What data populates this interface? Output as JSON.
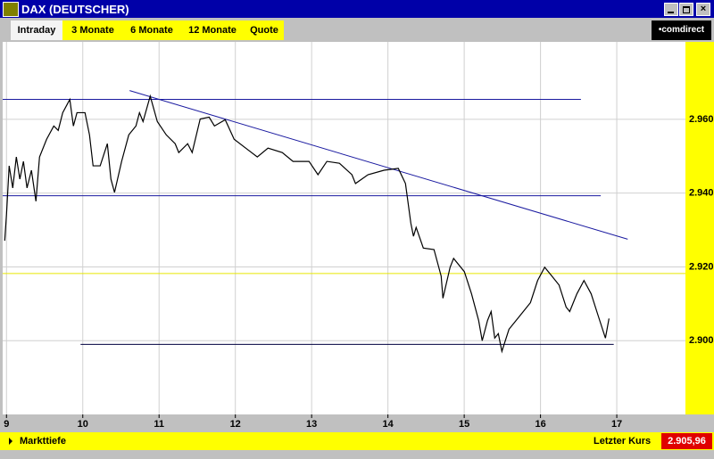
{
  "window": {
    "title": "DAX (DEUTSCHER)"
  },
  "tabs": [
    "Intraday",
    "3 Monate",
    "6 Monate",
    "12 Monate",
    "Quote"
  ],
  "logo": "•comdirect",
  "footer": {
    "depth": "Markttiefe",
    "last_label": "Letzter Kurs",
    "last_price": "2.905,96"
  },
  "chart_data": {
    "type": "line",
    "x": [
      8.977,
      9.0,
      9.035,
      9.082,
      9.129,
      9.175,
      9.222,
      9.269,
      9.327,
      9.386,
      9.433,
      9.526,
      9.62,
      9.678,
      9.737,
      9.83,
      9.877,
      9.924,
      10.029,
      10.088,
      10.135,
      10.228,
      10.322,
      10.369,
      10.416,
      10.509,
      10.603,
      10.697,
      10.743,
      10.79,
      10.884,
      10.977,
      11.094,
      11.211,
      11.258,
      11.375,
      11.434,
      11.539,
      11.656,
      11.726,
      11.867,
      11.984,
      12.136,
      12.288,
      12.428,
      12.615,
      12.756,
      12.966,
      13.083,
      13.2,
      13.364,
      13.528,
      13.575,
      13.739,
      13.949,
      14.136,
      14.23,
      14.3,
      14.335,
      14.37,
      14.464,
      14.604,
      14.698,
      14.721,
      14.815,
      14.861,
      15.002,
      15.096,
      15.189,
      15.236,
      15.306,
      15.353,
      15.4,
      15.447,
      15.494,
      15.587,
      15.728,
      15.868,
      15.962,
      16.055,
      16.149,
      16.243,
      16.336,
      16.383,
      16.477,
      16.57,
      16.664,
      16.757,
      16.851,
      16.898
    ],
    "series": [
      {
        "color": "#000000",
        "values": [
          2927.1,
          2934.2,
          2947.4,
          2941.4,
          2949.8,
          2943.8,
          2948.6,
          2941.4,
          2946.2,
          2937.8,
          2949.8,
          2954.6,
          2958.2,
          2957.0,
          2961.8,
          2965.4,
          2958.2,
          2961.8,
          2961.8,
          2955.8,
          2947.4,
          2947.4,
          2953.4,
          2943.8,
          2940.2,
          2948.6,
          2955.8,
          2958.2,
          2961.8,
          2959.4,
          2966.3,
          2959.4,
          2955.8,
          2953.4,
          2951.0,
          2953.4,
          2951.0,
          2960.1,
          2960.6,
          2958.2,
          2959.9,
          2954.6,
          2952.2,
          2949.8,
          2952.2,
          2951.0,
          2948.6,
          2948.6,
          2945.0,
          2948.6,
          2948.1,
          2945.0,
          2942.6,
          2945.0,
          2946.2,
          2946.7,
          2942.6,
          2931.9,
          2928.3,
          2930.7,
          2925.1,
          2924.7,
          2917.5,
          2911.5,
          2919.9,
          2922.3,
          2918.7,
          2912.7,
          2905.5,
          2900.0,
          2905.5,
          2907.9,
          2900.7,
          2901.9,
          2897.1,
          2903.1,
          2906.7,
          2910.3,
          2916.3,
          2919.9,
          2917.5,
          2915.1,
          2909.1,
          2907.9,
          2912.7,
          2916.3,
          2912.7,
          2906.7,
          2900.7,
          2906.0
        ]
      }
    ],
    "lines": [
      {
        "x": [
          8.95,
          16.53
        ],
        "y": [
          2965.4,
          2965.4
        ],
        "color": "#1a1aa0"
      },
      {
        "x": [
          8.95,
          16.79
        ],
        "y": [
          2939.3,
          2939.3
        ],
        "color": "#1a1aa0"
      },
      {
        "x": [
          10.614,
          17.143
        ],
        "y": [
          2967.8,
          2927.5
        ],
        "color": "#1a1aa0"
      },
      {
        "x": [
          8.95,
          17.9
        ],
        "y": [
          2918.2,
          2918.2
        ],
        "color": "#e6e600"
      },
      {
        "x": [
          9.971,
          16.96
        ],
        "y": [
          2899.0,
          2899.0
        ],
        "color": "#000040"
      }
    ],
    "xlim": [
      8.95,
      17.9
    ],
    "xticks": [
      9,
      10,
      11,
      12,
      13,
      14,
      15,
      16,
      17
    ],
    "ylim": [
      2880,
      2981
    ],
    "yticks": [
      {
        "value": 2900,
        "label": "2.900"
      },
      {
        "value": 2920,
        "label": "2.920"
      },
      {
        "value": 2940,
        "label": "2.940"
      },
      {
        "value": 2960,
        "label": "2.960"
      }
    ],
    "grid": true
  }
}
